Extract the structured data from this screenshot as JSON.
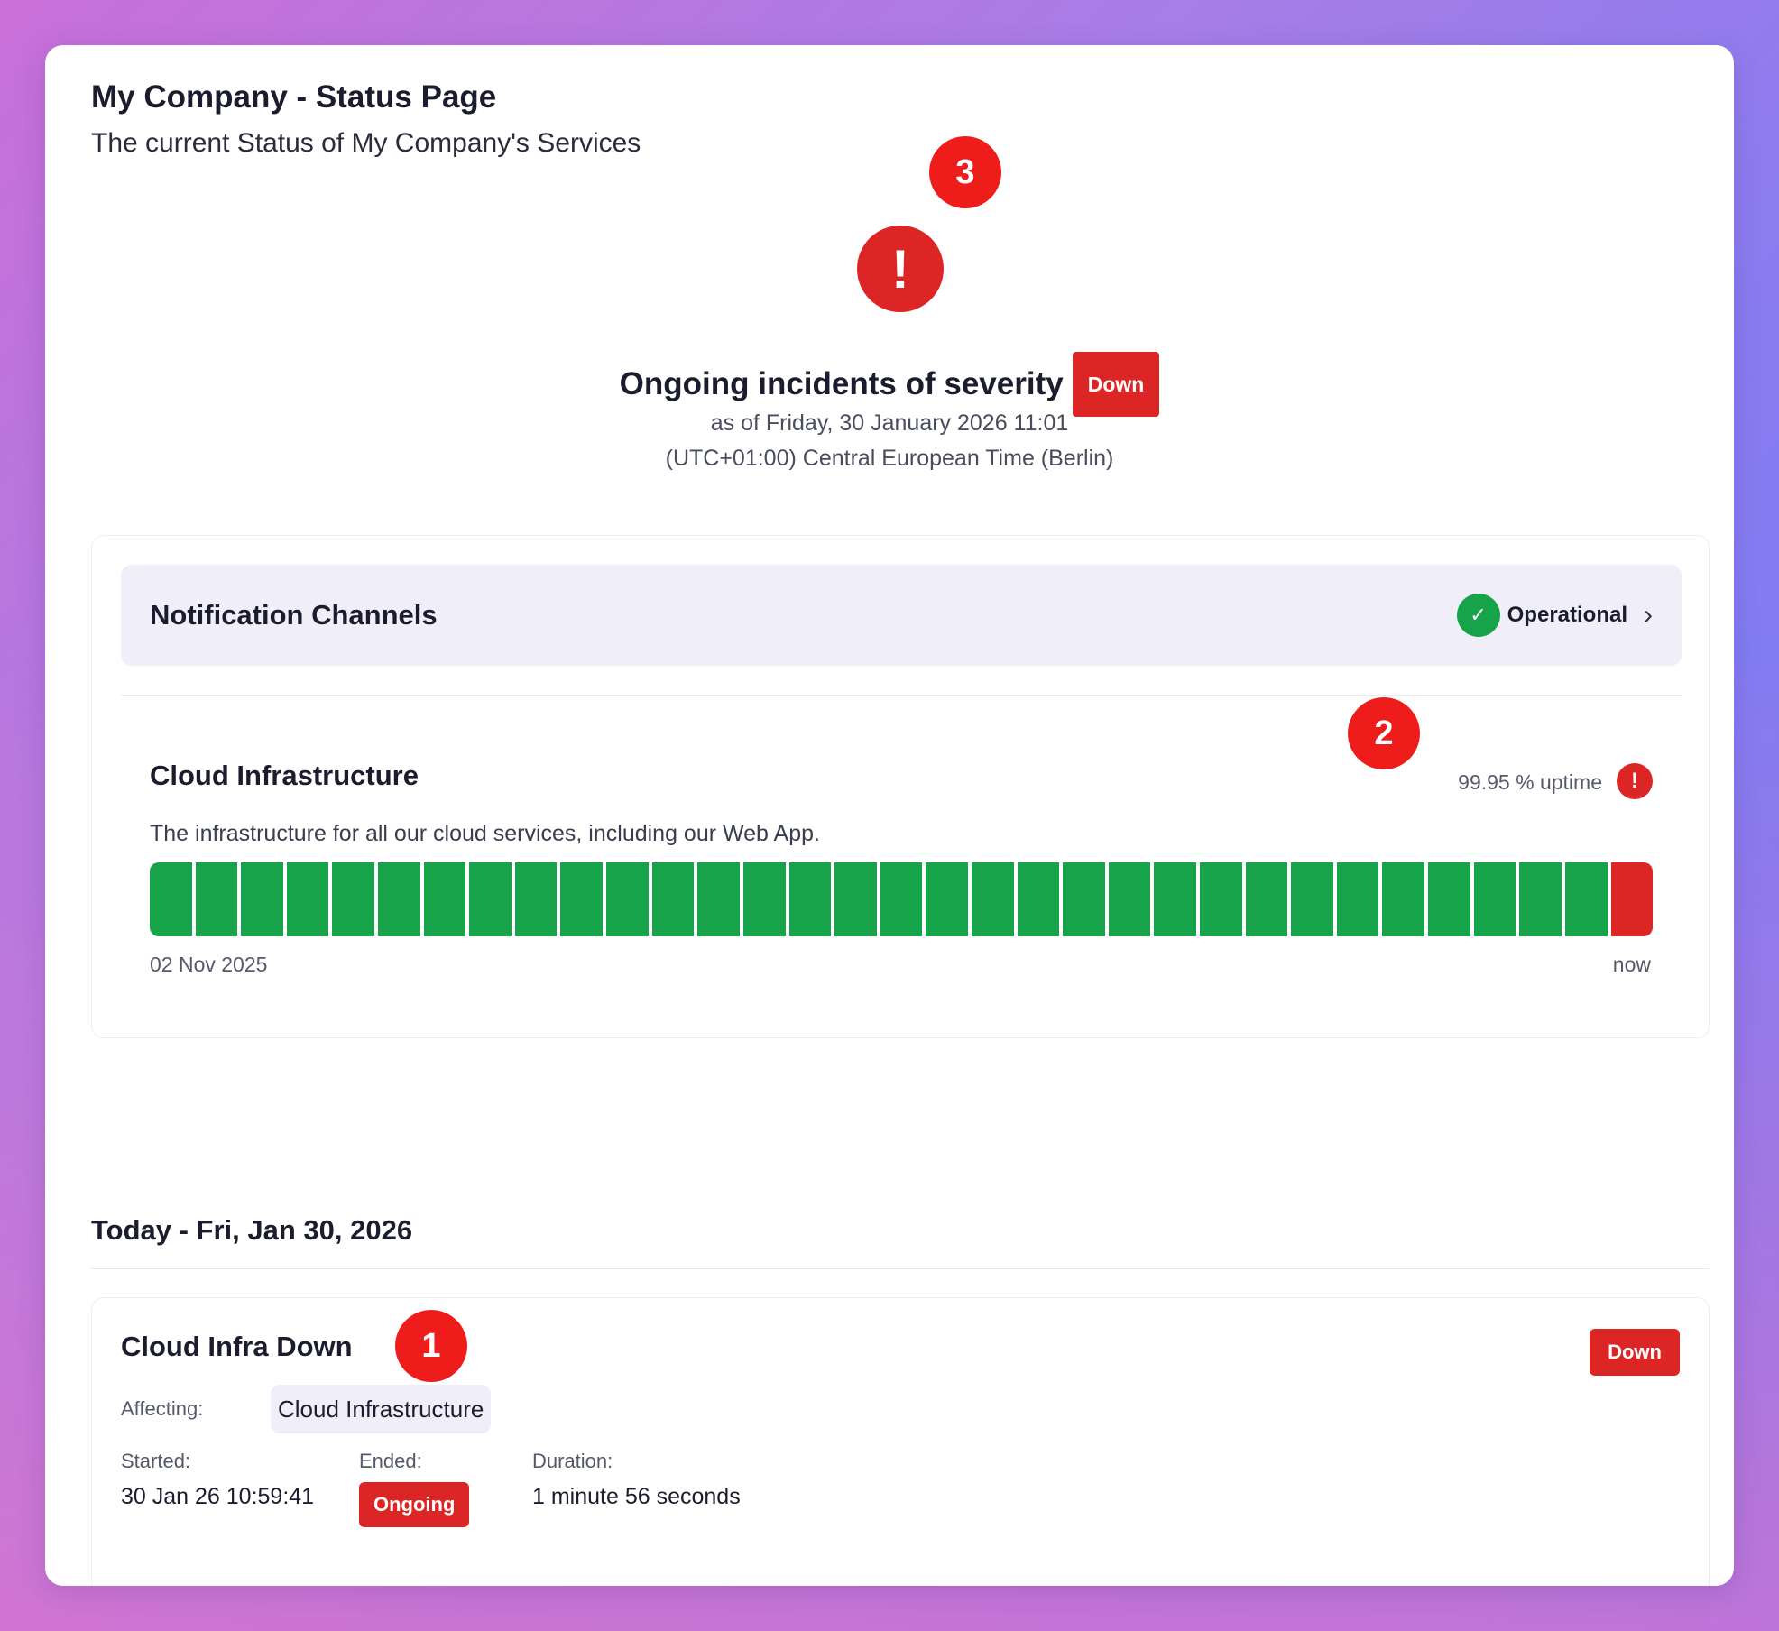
{
  "header": {
    "title": "My Company - Status Page",
    "subtitle": "The current Status of My Company's Services"
  },
  "overall": {
    "icon": "exclamation-icon",
    "headline": "Ongoing incidents of severity",
    "severity": "Down",
    "as_of": "as of Friday, 30 January 2026 11:01",
    "timezone": "(UTC+01:00) Central European Time (Berlin)"
  },
  "services": {
    "group": {
      "name": "Notification Channels",
      "status": "Operational",
      "status_icon": "check-icon"
    },
    "service": {
      "name": "Cloud Infrastructure",
      "uptime": "99.95 % uptime",
      "description": "The infrastructure for all our cloud services, including our Web App.",
      "bar_start": "02 Nov 2025",
      "bar_end": "now",
      "segments": [
        "up",
        "up",
        "up",
        "up",
        "up",
        "up",
        "up",
        "up",
        "up",
        "up",
        "up",
        "up",
        "up",
        "up",
        "up",
        "up",
        "up",
        "up",
        "up",
        "up",
        "up",
        "up",
        "up",
        "up",
        "up",
        "up",
        "up",
        "up",
        "up",
        "up",
        "up",
        "up",
        "down"
      ]
    }
  },
  "colors": {
    "up": "#16a34a",
    "down": "#dc2626",
    "accent": "#f0eff9"
  },
  "history": {
    "day_header": "Today - Fri, Jan 30, 2026",
    "incident": {
      "title": "Cloud Infra Down",
      "severity": "Down",
      "affecting_label": "Affecting:",
      "affected_service": "Cloud Infrastructure",
      "started_label": "Started:",
      "started_value": "30 Jan 26 10:59:41",
      "ended_label": "Ended:",
      "ended_value": "Ongoing",
      "duration_label": "Duration:",
      "duration_value": "1 minute 56 seconds"
    }
  },
  "markers": [
    "1",
    "2",
    "3"
  ]
}
